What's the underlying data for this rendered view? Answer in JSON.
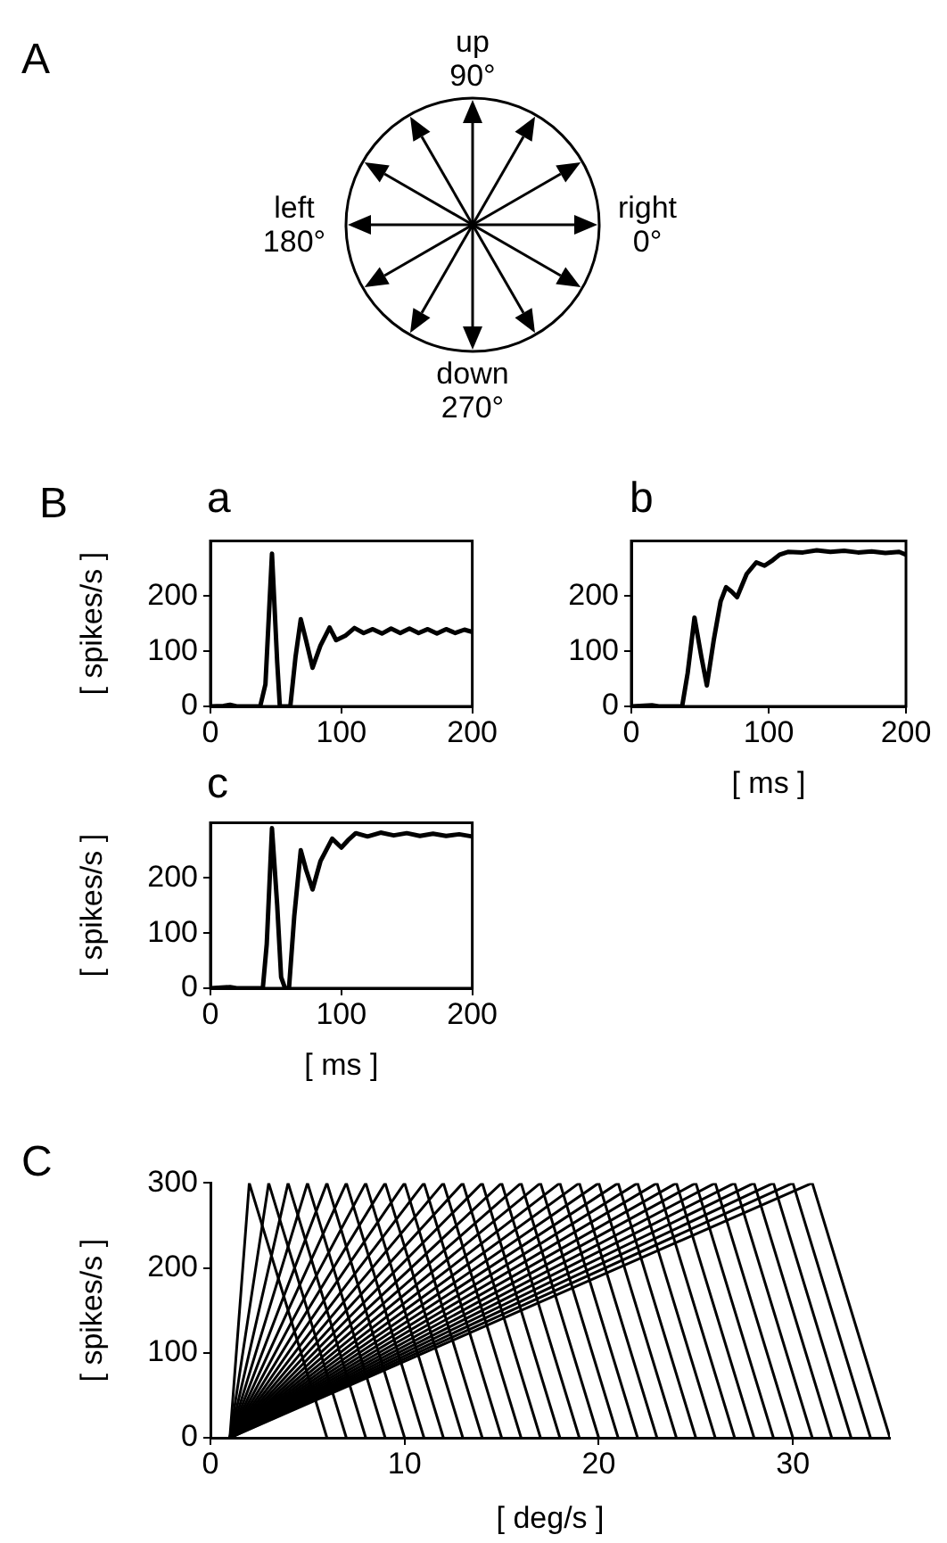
{
  "chart_data": [
    {
      "type": "other",
      "title": "A",
      "annotations": [
        "up\n90°",
        "left\n180°",
        "right\n0°",
        "down\n270°"
      ]
    },
    {
      "type": "line",
      "title": "a",
      "annotations": [
        "B"
      ],
      "ylabel": "[ spikes/s ]",
      "color": "#000000",
      "marker": "none",
      "line_style": "solid",
      "xlim": [
        0,
        200
      ],
      "ylim": [
        0,
        300
      ],
      "xticks": [
        0,
        100,
        200
      ],
      "yticks": [
        0,
        100,
        200
      ],
      "x": [
        0,
        10,
        15,
        20,
        38,
        42,
        47,
        51,
        53,
        58,
        61,
        65,
        69,
        73,
        78,
        84,
        91,
        96,
        103,
        110,
        117,
        124,
        131,
        138,
        145,
        152,
        159,
        166,
        173,
        180,
        187,
        194,
        200
      ],
      "values": [
        0,
        1,
        3,
        0,
        0,
        40,
        277,
        80,
        0,
        0,
        0,
        90,
        158,
        120,
        70,
        110,
        143,
        120,
        128,
        142,
        133,
        140,
        132,
        141,
        133,
        141,
        133,
        140,
        132,
        140,
        133,
        139,
        135
      ]
    },
    {
      "type": "line",
      "title": "b",
      "xlabel": "[ ms ]",
      "color": "#000000",
      "marker": "none",
      "line_style": "solid",
      "xlim": [
        0,
        200
      ],
      "ylim": [
        0,
        300
      ],
      "xticks": [
        0,
        100,
        200
      ],
      "yticks": [
        0,
        100,
        200
      ],
      "x": [
        0,
        15,
        20,
        37,
        41,
        46,
        51,
        55,
        60,
        65,
        69,
        73,
        77,
        84,
        91,
        97,
        103,
        108,
        114,
        125,
        135,
        145,
        155,
        165,
        175,
        185,
        195,
        200
      ],
      "values": [
        0,
        2,
        0,
        0,
        60,
        161,
        90,
        38,
        120,
        190,
        216,
        208,
        198,
        240,
        261,
        255,
        265,
        275,
        280,
        279,
        283,
        280,
        282,
        279,
        281,
        278,
        280,
        275
      ]
    },
    {
      "type": "line",
      "title": "c",
      "xlabel": "[ ms ]",
      "ylabel": "[ spikes/s ]",
      "color": "#000000",
      "marker": "none",
      "line_style": "solid",
      "xlim": [
        0,
        200
      ],
      "ylim": [
        0,
        300
      ],
      "xticks": [
        0,
        100,
        200
      ],
      "yticks": [
        0,
        100,
        200
      ],
      "x": [
        0,
        15,
        20,
        40,
        43,
        47,
        51,
        54,
        57,
        60,
        64,
        69,
        73,
        78,
        84,
        93,
        100,
        105,
        111,
        120,
        130,
        140,
        150,
        160,
        170,
        180,
        190,
        200
      ],
      "values": [
        0,
        2,
        0,
        0,
        80,
        290,
        150,
        20,
        0,
        0,
        130,
        250,
        215,
        179,
        230,
        271,
        255,
        268,
        281,
        275,
        282,
        277,
        281,
        276,
        280,
        276,
        279,
        275
      ]
    },
    {
      "type": "line",
      "title": "C",
      "xlabel": "[ deg/s ]",
      "ylabel": "[ spikes/s ]",
      "marker": "none",
      "line_style": "solid",
      "xlim": [
        0,
        35
      ],
      "ylim": [
        0,
        300
      ],
      "xticks": [
        0,
        10,
        20,
        30
      ],
      "yticks": [
        0,
        100,
        200,
        300
      ],
      "series": [
        {
          "color": "#000000",
          "x": [
            1,
            2,
            6
          ],
          "values": [
            0,
            300,
            0
          ]
        },
        {
          "color": "#000000",
          "x": [
            1,
            3,
            7
          ],
          "values": [
            0,
            300,
            0
          ]
        },
        {
          "color": "#000000",
          "x": [
            1,
            4,
            8
          ],
          "values": [
            0,
            300,
            0
          ]
        },
        {
          "color": "#000000",
          "x": [
            1,
            5,
            9
          ],
          "values": [
            0,
            300,
            0
          ]
        },
        {
          "color": "#000000",
          "x": [
            1,
            6,
            10
          ],
          "values": [
            0,
            300,
            0
          ]
        },
        {
          "color": "#000000",
          "x": [
            1,
            7,
            11
          ],
          "values": [
            0,
            300,
            0
          ]
        },
        {
          "color": "#000000",
          "x": [
            1,
            8,
            12
          ],
          "values": [
            0,
            300,
            0
          ]
        },
        {
          "color": "#000000",
          "x": [
            1,
            9,
            13
          ],
          "values": [
            0,
            300,
            0
          ]
        },
        {
          "color": "#000000",
          "x": [
            1,
            10,
            14
          ],
          "values": [
            0,
            300,
            0
          ]
        },
        {
          "color": "#000000",
          "x": [
            1,
            11,
            15
          ],
          "values": [
            0,
            300,
            0
          ]
        },
        {
          "color": "#000000",
          "x": [
            1,
            12,
            16
          ],
          "values": [
            0,
            300,
            0
          ]
        },
        {
          "color": "#000000",
          "x": [
            1,
            13,
            17
          ],
          "values": [
            0,
            300,
            0
          ]
        },
        {
          "color": "#000000",
          "x": [
            1,
            14,
            18
          ],
          "values": [
            0,
            300,
            0
          ]
        },
        {
          "color": "#000000",
          "x": [
            1,
            15,
            19
          ],
          "values": [
            0,
            300,
            0
          ]
        },
        {
          "color": "#000000",
          "x": [
            1,
            16,
            20
          ],
          "values": [
            0,
            300,
            0
          ]
        },
        {
          "color": "#000000",
          "x": [
            1,
            17,
            21
          ],
          "values": [
            0,
            300,
            0
          ]
        },
        {
          "color": "#000000",
          "x": [
            1,
            18,
            22
          ],
          "values": [
            0,
            300,
            0
          ]
        },
        {
          "color": "#000000",
          "x": [
            1,
            19,
            23
          ],
          "values": [
            0,
            300,
            0
          ]
        },
        {
          "color": "#000000",
          "x": [
            1,
            20,
            24
          ],
          "values": [
            0,
            300,
            0
          ]
        },
        {
          "color": "#000000",
          "x": [
            1,
            21,
            25
          ],
          "values": [
            0,
            300,
            0
          ]
        },
        {
          "color": "#000000",
          "x": [
            1,
            22,
            26
          ],
          "values": [
            0,
            300,
            0
          ]
        },
        {
          "color": "#000000",
          "x": [
            1,
            23,
            27
          ],
          "values": [
            0,
            300,
            0
          ]
        },
        {
          "color": "#000000",
          "x": [
            1,
            24,
            28
          ],
          "values": [
            0,
            300,
            0
          ]
        },
        {
          "color": "#000000",
          "x": [
            1,
            25,
            29
          ],
          "values": [
            0,
            300,
            0
          ]
        },
        {
          "color": "#000000",
          "x": [
            1,
            26,
            30
          ],
          "values": [
            0,
            300,
            0
          ]
        },
        {
          "color": "#000000",
          "x": [
            1,
            27,
            31
          ],
          "values": [
            0,
            300,
            0
          ]
        },
        {
          "color": "#000000",
          "x": [
            1,
            28,
            32
          ],
          "values": [
            0,
            300,
            0
          ]
        },
        {
          "color": "#000000",
          "x": [
            1,
            29,
            33
          ],
          "values": [
            0,
            300,
            0
          ]
        },
        {
          "color": "#000000",
          "x": [
            1,
            30,
            34
          ],
          "values": [
            0,
            300,
            0
          ]
        },
        {
          "color": "#000000",
          "x": [
            1,
            31,
            35
          ],
          "values": [
            0,
            300,
            0
          ]
        }
      ]
    }
  ]
}
